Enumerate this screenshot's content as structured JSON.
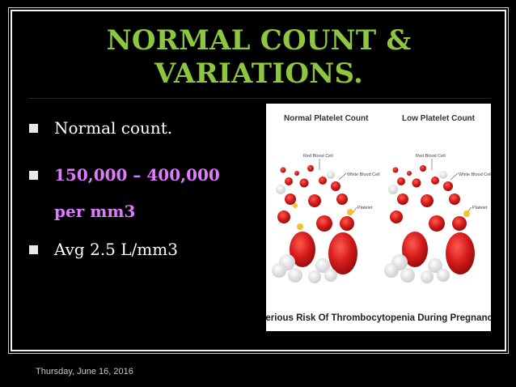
{
  "slide": {
    "title_line1": "NORMAL COUNT &",
    "title_line2": "VARIATIONS.",
    "bullets": [
      {
        "line1": "Normal count."
      },
      {
        "line1": "150,000 – 400,000",
        "line2": "per mm3"
      },
      {
        "line1": "Avg 2.5 L/mm3"
      }
    ],
    "footer_date": "Thursday, June 16, 2016"
  },
  "image": {
    "left_heading": "Normal Platelet Count",
    "right_heading": "Low Platelet Count",
    "label_rbc": "Red Blood Cell",
    "label_wbc": "White Blood Cell",
    "label_platelet": "Platelet",
    "caption": "Serious Risk Of Thrombocytopenia During Pregnancy"
  },
  "colors": {
    "title": "#8dc63f",
    "highlight": "#e07bff",
    "background": "#000000",
    "rule": "#7a0000",
    "rbc": "#d42020",
    "platelet": "#f2c230"
  }
}
